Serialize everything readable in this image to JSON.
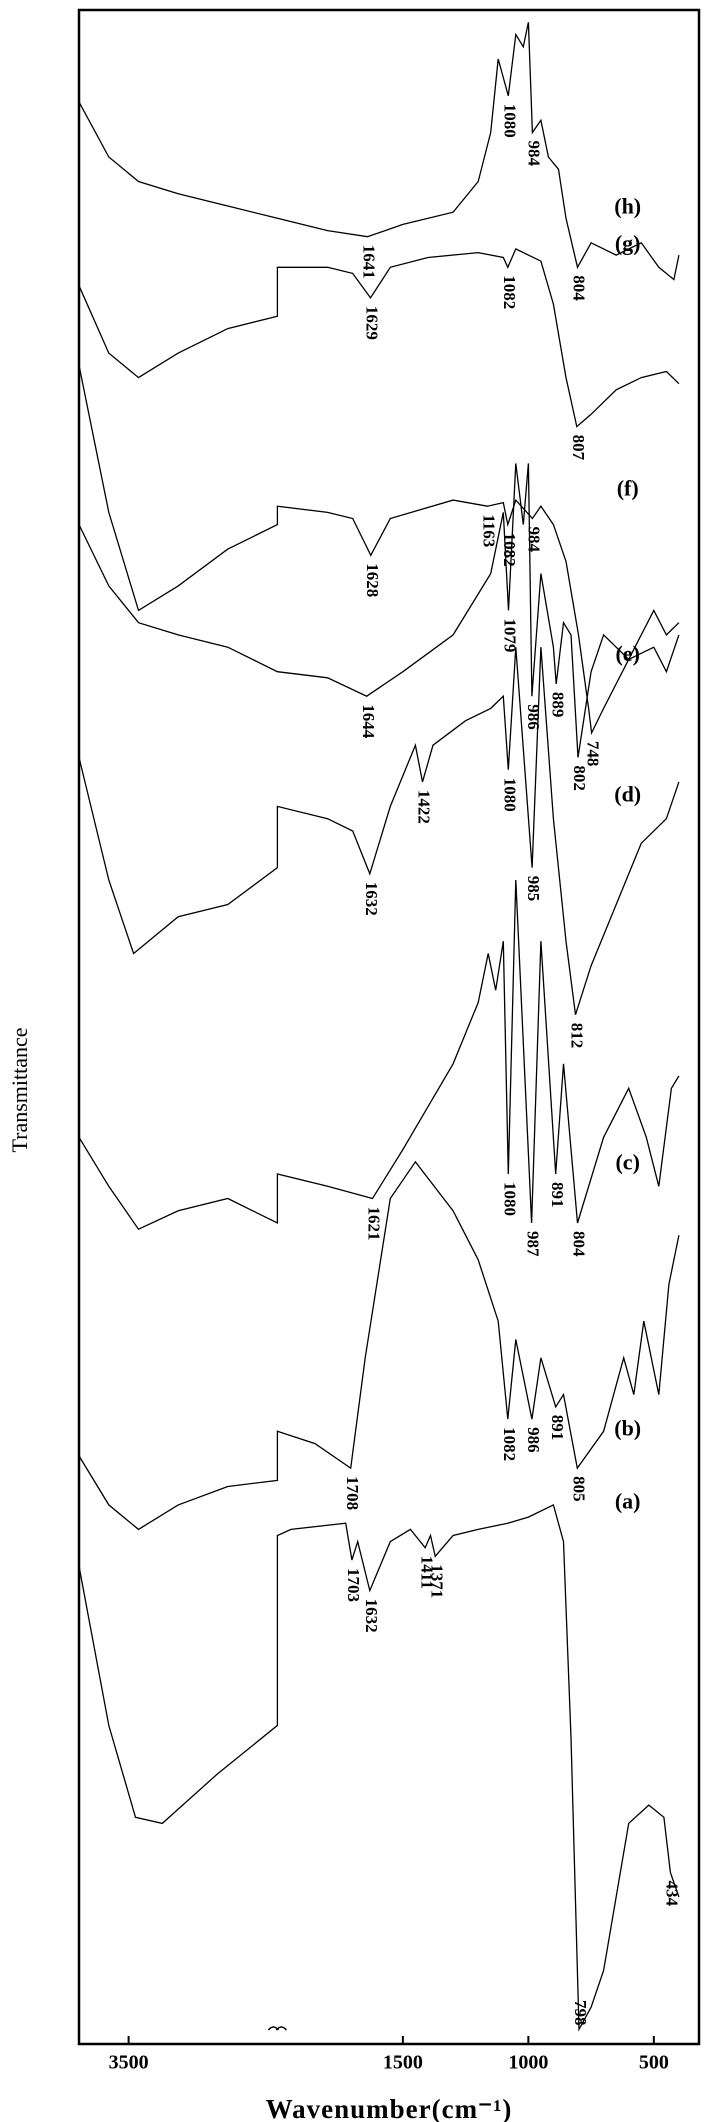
{
  "chart_data": {
    "type": "line",
    "x_label": "Wavenumber(cm⁻¹)",
    "y_label": "Transmittance",
    "xlim": [
      4000,
      320
    ],
    "x_break": 2000,
    "xticks": [
      3500,
      1500,
      1000,
      500
    ],
    "ylim": [
      0,
      1660
    ],
    "series": [
      {
        "name": "(a)",
        "color": "#000000",
        "x": [
          4000,
          3700,
          3430,
          3160,
          2610,
          2000,
          2000,
          1946,
          1728,
          1703,
          1680,
          1632,
          1550,
          1470,
          1411,
          1390,
          1371,
          1300,
          1200,
          1082,
          1000,
          900,
          860,
          830,
          798,
          750,
          700,
          600,
          520,
          460,
          434,
          400
        ],
        "values": [
          390,
          260,
          185,
          180,
          220,
          260,
          415,
          420,
          425,
          395,
          410,
          370,
          410,
          420,
          405,
          415,
          398,
          415,
          420,
          425,
          430,
          440,
          410,
          250,
          12,
          30,
          60,
          180,
          195,
          185,
          140,
          120
        ],
        "peaks": [
          1703,
          1632,
          1411,
          1371,
          798,
          434
        ]
      },
      {
        "name": "(b)",
        "color": "#000000",
        "x": [
          4000,
          3700,
          3400,
          3000,
          2500,
          2000,
          2000,
          1850,
          1708,
          1650,
          1550,
          1450,
          1300,
          1200,
          1120,
          1082,
          1050,
          986,
          950,
          891,
          860,
          805,
          700,
          620,
          580,
          540,
          480,
          440,
          400
        ],
        "values": [
          480,
          440,
          420,
          440,
          455,
          460,
          500,
          490,
          470,
          560,
          690,
          720,
          680,
          640,
          590,
          510,
          575,
          510,
          560,
          520,
          530,
          470,
          500,
          560,
          530,
          590,
          530,
          620,
          660
        ],
        "peaks": [
          1708,
          1082,
          986,
          891,
          805
        ]
      },
      {
        "name": "(c)",
        "color": "#000000",
        "x": [
          4000,
          3700,
          3400,
          3000,
          2500,
          2000,
          2000,
          1800,
          1621,
          1500,
          1300,
          1200,
          1160,
          1130,
          1100,
          1080,
          1050,
          987,
          950,
          891,
          860,
          804,
          700,
          600,
          530,
          480,
          430,
          400
        ],
        "values": [
          740,
          700,
          665,
          680,
          690,
          670,
          710,
          700,
          690,
          730,
          800,
          850,
          890,
          860,
          900,
          710,
          950,
          670,
          900,
          710,
          800,
          670,
          740,
          780,
          740,
          700,
          780,
          790
        ],
        "peaks": [
          1621,
          1080,
          987,
          891,
          804
        ]
      },
      {
        "name": "(d)",
        "color": "#000000",
        "x": [
          4000,
          3700,
          3450,
          3000,
          2500,
          2000,
          2000,
          1800,
          1700,
          1632,
          1550,
          1450,
          1422,
          1380,
          1250,
          1150,
          1100,
          1080,
          1050,
          985,
          950,
          900,
          850,
          812,
          750,
          650,
          550,
          450,
          400
        ],
        "values": [
          1050,
          950,
          890,
          920,
          930,
          960,
          1010,
          1000,
          990,
          955,
          1010,
          1060,
          1030,
          1060,
          1080,
          1090,
          1100,
          1040,
          1140,
          960,
          1140,
          1000,
          900,
          840,
          880,
          930,
          980,
          1000,
          1030
        ],
        "peaks": [
          1632,
          1422,
          1080,
          985,
          812
        ]
      },
      {
        "name": "(e)",
        "color": "#000000",
        "x": [
          4000,
          3700,
          3400,
          3000,
          2500,
          2000,
          1800,
          1644,
          1500,
          1300,
          1150,
          1100,
          1079,
          1050,
          1020,
          1000,
          986,
          950,
          900,
          889,
          860,
          830,
          802,
          750,
          700,
          600,
          500,
          450,
          400
        ],
        "values": [
          1240,
          1190,
          1160,
          1150,
          1140,
          1120,
          1115,
          1100,
          1120,
          1150,
          1200,
          1250,
          1170,
          1290,
          1240,
          1290,
          1100,
          1200,
          1140,
          1110,
          1160,
          1150,
          1050,
          1120,
          1150,
          1130,
          1140,
          1120,
          1150
        ],
        "peaks": [
          1644,
          1079,
          986,
          889,
          802
        ]
      },
      {
        "name": "(f)",
        "color": "#000000",
        "x": [
          4000,
          3700,
          3400,
          3000,
          2500,
          2000,
          2000,
          1800,
          1700,
          1628,
          1550,
          1300,
          1163,
          1100,
          1082,
          1050,
          984,
          950,
          900,
          850,
          800,
          760,
          748,
          700,
          600,
          500,
          450,
          400
        ],
        "values": [
          1370,
          1250,
          1170,
          1190,
          1220,
          1240,
          1255,
          1250,
          1245,
          1215,
          1245,
          1260,
          1255,
          1258,
          1240,
          1260,
          1245,
          1255,
          1240,
          1210,
          1150,
          1090,
          1070,
          1090,
          1130,
          1170,
          1150,
          1160
        ],
        "peaks": [
          1628,
          1163,
          1082,
          984,
          748
        ]
      },
      {
        "name": "(g)",
        "color": "#000000",
        "x": [
          4000,
          3700,
          3400,
          3000,
          2500,
          2000,
          2000,
          1800,
          1700,
          1629,
          1550,
          1400,
          1200,
          1100,
          1082,
          1050,
          1000,
          950,
          900,
          850,
          807,
          750,
          650,
          550,
          450,
          400
        ],
        "values": [
          1435,
          1380,
          1360,
          1380,
          1400,
          1410,
          1450,
          1450,
          1445,
          1425,
          1450,
          1458,
          1462,
          1458,
          1450,
          1465,
          1460,
          1455,
          1420,
          1360,
          1320,
          1330,
          1350,
          1360,
          1365,
          1355
        ],
        "peaks": [
          1629,
          1082,
          807
        ]
      },
      {
        "name": "(h)",
        "color": "#000000",
        "x": [
          4000,
          3700,
          3400,
          3000,
          2500,
          2000,
          1800,
          1641,
          1500,
          1300,
          1200,
          1150,
          1120,
          1080,
          1050,
          1020,
          1000,
          984,
          950,
          920,
          880,
          850,
          804,
          750,
          650,
          550,
          480,
          420,
          400
        ],
        "values": [
          1585,
          1540,
          1520,
          1510,
          1500,
          1490,
          1480,
          1475,
          1485,
          1495,
          1520,
          1560,
          1620,
          1590,
          1640,
          1630,
          1650,
          1560,
          1570,
          1540,
          1530,
          1490,
          1450,
          1470,
          1460,
          1470,
          1450,
          1440,
          1460
        ],
        "peaks": [
          1641,
          1080,
          984,
          804
        ]
      }
    ]
  }
}
